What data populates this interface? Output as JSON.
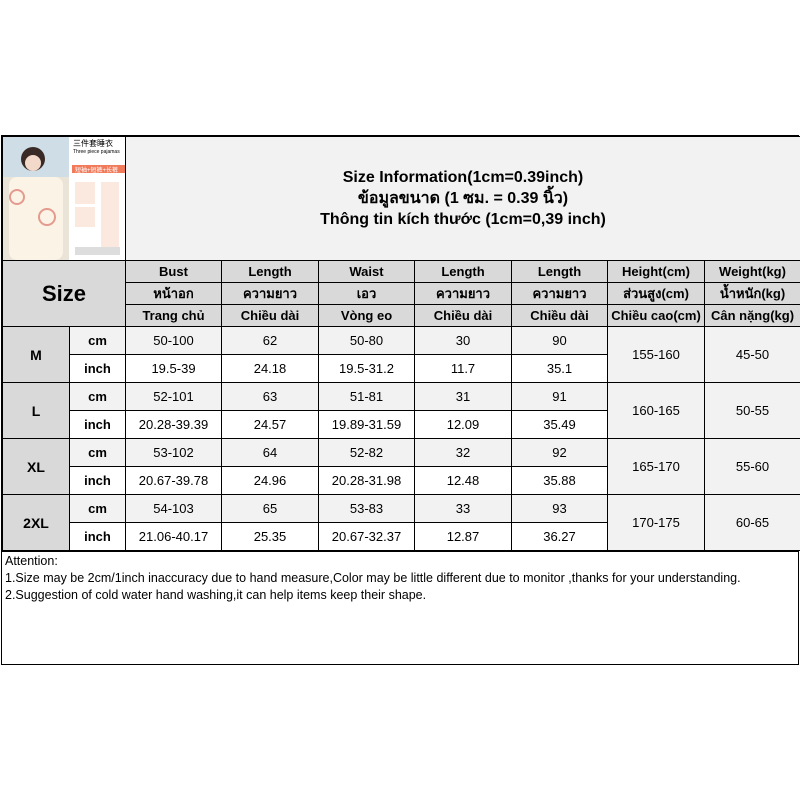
{
  "title_lines": [
    "Size Information(1cm=0.39inch)",
    "ข้อมูลขนาด (1 ซม. = 0.39 นิ้ว)",
    "Thông tin kích thước (1cm=0,39 inch)"
  ],
  "thumbnail": {
    "text": [
      "三件套睡衣",
      "Three piece pajamas",
      "短袖+短裤+长裤"
    ]
  },
  "size_label": "Size",
  "columns": [
    [
      "Bust",
      "หน้าอก",
      "Trang chủ"
    ],
    [
      "Length",
      "ความยาว",
      "Chiều dài"
    ],
    [
      "Waist",
      "เอว",
      "Vòng eo"
    ],
    [
      "Length",
      "ความยาว",
      "Chiều dài"
    ],
    [
      "Length",
      "ความยาว",
      "Chiều dài"
    ],
    [
      "Height(cm)",
      "ส่วนสูง(cm)",
      "Chiều cao(cm)"
    ],
    [
      "Weight(kg)",
      "น้ำหนัก(kg)",
      "Cân nặng(kg)"
    ]
  ],
  "units": [
    "cm",
    "inch"
  ],
  "rows": [
    {
      "size": "M",
      "cm": [
        "50-100",
        "62",
        "50-80",
        "30",
        "90"
      ],
      "inch": [
        "19.5-39",
        "24.18",
        "19.5-31.2",
        "11.7",
        "35.1"
      ],
      "height": "155-160",
      "weight": "45-50"
    },
    {
      "size": "L",
      "cm": [
        "52-101",
        "63",
        "51-81",
        "31",
        "91"
      ],
      "inch": [
        "20.28-39.39",
        "24.57",
        "19.89-31.59",
        "12.09",
        "35.49"
      ],
      "height": "160-165",
      "weight": "50-55"
    },
    {
      "size": "XL",
      "cm": [
        "53-102",
        "64",
        "52-82",
        "32",
        "92"
      ],
      "inch": [
        "20.67-39.78",
        "24.96",
        "20.28-31.98",
        "12.48",
        "35.88"
      ],
      "height": "165-170",
      "weight": "55-60"
    },
    {
      "size": "2XL",
      "cm": [
        "54-103",
        "65",
        "53-83",
        "33",
        "93"
      ],
      "inch": [
        "21.06-40.17",
        "25.35",
        "20.67-32.37",
        "12.87",
        "36.27"
      ],
      "height": "170-175",
      "weight": "60-65"
    }
  ],
  "attention": [
    "Attention:",
    "1.Size may be 2cm/1inch inaccuracy due to hand measure,Color may be little different due to monitor ,thanks for your understanding.",
    "2.Suggestion of cold water hand washing,it can help items keep their shape."
  ]
}
